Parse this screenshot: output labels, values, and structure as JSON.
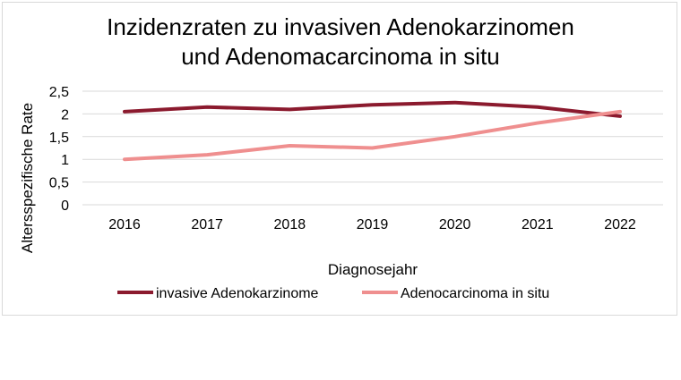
{
  "chart_data": {
    "type": "line",
    "title_lines": [
      "Inzidenzraten zu invasiven Adenokarzinomen",
      "und Adenomacarcinoma in situ"
    ],
    "xlabel": "Diagnosejahr",
    "ylabel": "Altersspezifische Rate",
    "x": [
      "2016",
      "2017",
      "2018",
      "2019",
      "2020",
      "2021",
      "2022"
    ],
    "ylim": [
      0,
      2.5
    ],
    "yticks": [
      "0",
      "0,5",
      "1",
      "1,5",
      "2",
      "2,5"
    ],
    "ytick_values": [
      0,
      0.5,
      1,
      1.5,
      2,
      2.5
    ],
    "grid": true,
    "legend_position": "bottom",
    "series": [
      {
        "name": "invasive Adenokarzinome",
        "color": "#8b1a2e",
        "values": [
          2.05,
          2.15,
          2.1,
          2.2,
          2.25,
          2.15,
          1.95
        ]
      },
      {
        "name": "Adenocarcinoma in situ",
        "color": "#ef8f8f",
        "values": [
          1.0,
          1.1,
          1.3,
          1.25,
          1.5,
          1.8,
          2.05
        ]
      }
    ]
  }
}
